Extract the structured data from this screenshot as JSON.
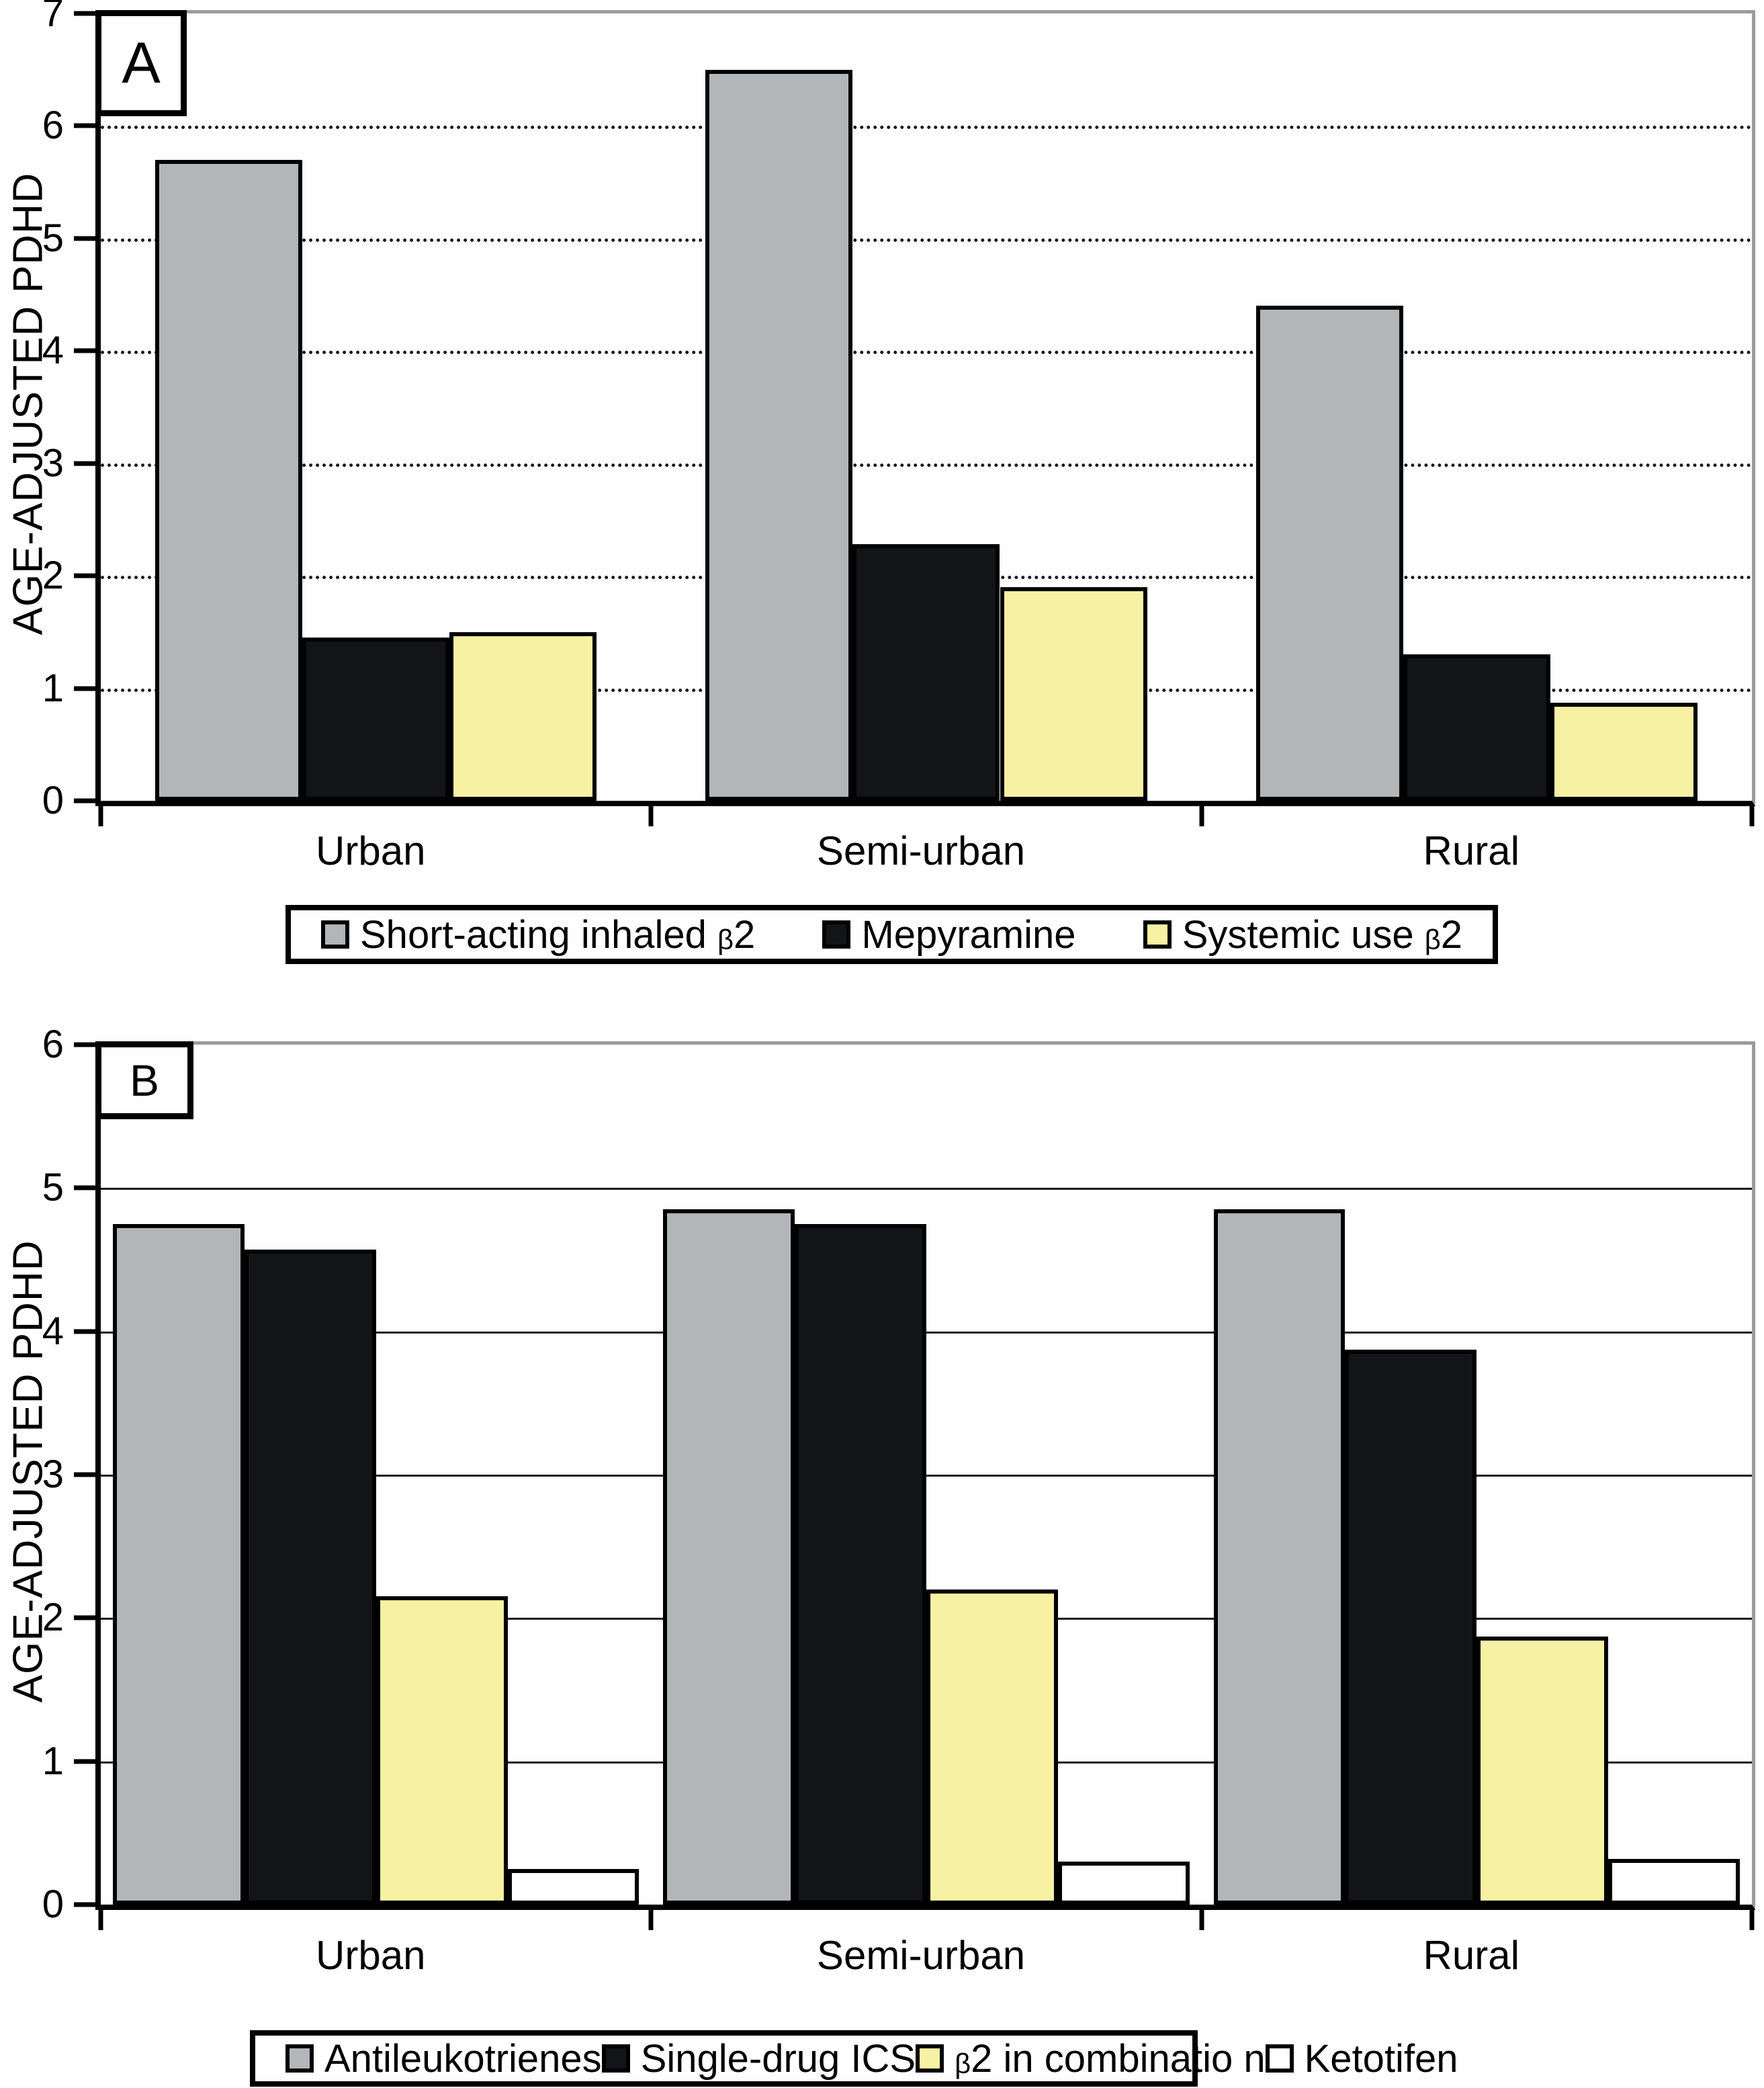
{
  "colors": {
    "gray": "#b3b6b9",
    "black": "#121418",
    "yellow": "#f7f1a3",
    "white": "#ffffff",
    "grid": "#1a1a1a",
    "axis": "#000000",
    "plot_border_light": "#9b9b9b"
  },
  "chart_data": [
    {
      "panel_label": "A",
      "type": "bar",
      "categories": [
        "Urban",
        "Semi-urban",
        "Rural"
      ],
      "series": [
        {
          "name": "Short-acting inhaled β2",
          "color": "#b3b6b9",
          "values": [
            5.7,
            6.5,
            4.4
          ]
        },
        {
          "name": "Mepyramine",
          "color": "#121418",
          "values": [
            1.45,
            2.28,
            1.3
          ]
        },
        {
          "name": "Systemic use β2",
          "color": "#f7f1a3",
          "values": [
            1.5,
            1.9,
            0.87
          ]
        }
      ],
      "xlabel": "",
      "ylabel": "AGE-ADJUSTED PDHD",
      "ylim": [
        0,
        7
      ],
      "yticks": [
        0,
        1,
        2,
        3,
        4,
        5,
        6,
        7
      ],
      "grid": "dotted",
      "legend_position": "bottom"
    },
    {
      "panel_label": "B",
      "type": "bar",
      "categories": [
        "Urban",
        "Semi-urban",
        "Rural"
      ],
      "series": [
        {
          "name": "Antileukotrienes",
          "color": "#b3b6b9",
          "values": [
            4.75,
            4.85,
            4.85
          ]
        },
        {
          "name": "Single-drug ICS",
          "color": "#121418",
          "values": [
            4.57,
            4.75,
            3.87
          ]
        },
        {
          "name": "β2 in combinatio n",
          "color": "#f7f1a3",
          "values": [
            2.15,
            2.2,
            1.87
          ]
        },
        {
          "name": "Ketotifen",
          "color": "#ffffff",
          "values": [
            0.25,
            0.3,
            0.32
          ]
        }
      ],
      "xlabel": "",
      "ylabel": "AGE-ADJUSTED PDHD",
      "ylim": [
        0,
        6
      ],
      "yticks": [
        0,
        1,
        2,
        3,
        4,
        5,
        6
      ],
      "grid": "solid",
      "legend_position": "bottom"
    }
  ]
}
